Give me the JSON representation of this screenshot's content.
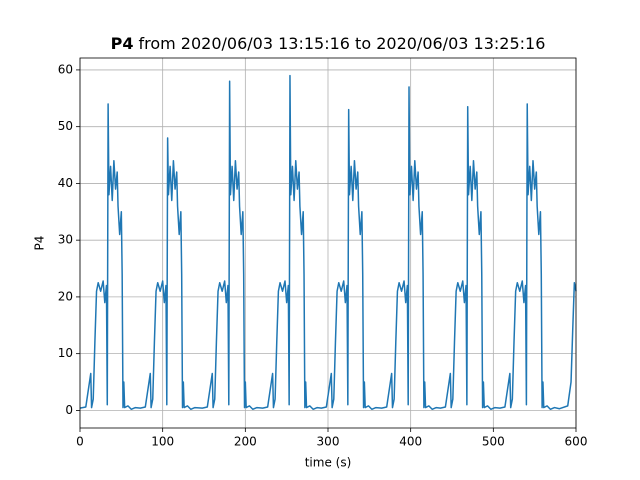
{
  "chart_data": {
    "type": "line",
    "title": {
      "bold": "P4",
      "text": "from 2020/06/03 13:15:16 to 2020/06/03 13:25:16"
    },
    "xlabel": "time (s)",
    "ylabel": "P4",
    "xlim": [
      0,
      600
    ],
    "ylim": [
      -3.1,
      62.1
    ],
    "xticks": [
      0,
      100,
      200,
      300,
      400,
      500,
      600
    ],
    "yticks": [
      0,
      10,
      20,
      30,
      40,
      50,
      60
    ],
    "grid": true,
    "color": "#1f77b4",
    "x": [
      0,
      7,
      13,
      14,
      16,
      18,
      20,
      22,
      25,
      28,
      30,
      32,
      33,
      34,
      35,
      37,
      39,
      41,
      43,
      45,
      46,
      48,
      50,
      51,
      52,
      53,
      54,
      58,
      62,
      67,
      73,
      79,
      85,
      86,
      88,
      90,
      92,
      94,
      97,
      100,
      102,
      104,
      105,
      106,
      107,
      109,
      111,
      113,
      115,
      117,
      118,
      120,
      122,
      123,
      124,
      125,
      126,
      130,
      134,
      139,
      148,
      154,
      160,
      161,
      163,
      165,
      167,
      169,
      172,
      175,
      177,
      179,
      180,
      181,
      182,
      184,
      186,
      188,
      190,
      192,
      193,
      195,
      197,
      198,
      199,
      200,
      201,
      205,
      209,
      214,
      221,
      227,
      233,
      234,
      236,
      238,
      240,
      242,
      245,
      248,
      250,
      252,
      253,
      254,
      255,
      257,
      259,
      261,
      263,
      265,
      266,
      268,
      270,
      271,
      272,
      273,
      274,
      278,
      282,
      287,
      292,
      298,
      304,
      305,
      307,
      309,
      311,
      313,
      316,
      319,
      321,
      323,
      324,
      325,
      326,
      328,
      330,
      332,
      334,
      336,
      337,
      339,
      341,
      342,
      343,
      344,
      345,
      349,
      353,
      358,
      365,
      371,
      377,
      378,
      380,
      382,
      384,
      386,
      389,
      392,
      394,
      396,
      397,
      398,
      399,
      401,
      403,
      405,
      407,
      409,
      410,
      412,
      414,
      415,
      416,
      417,
      418,
      422,
      426,
      431,
      436,
      442,
      448,
      449,
      451,
      453,
      455,
      457,
      460,
      463,
      465,
      467,
      468,
      469,
      470,
      472,
      474,
      476,
      478,
      480,
      481,
      483,
      485,
      486,
      487,
      488,
      489,
      493,
      497,
      502,
      508,
      514,
      520,
      521,
      523,
      525,
      527,
      529,
      532,
      535,
      537,
      539,
      540,
      541,
      542,
      544,
      546,
      548,
      550,
      552,
      553,
      555,
      557,
      558,
      559,
      560,
      561,
      565,
      569,
      574,
      580,
      590,
      594,
      596,
      598,
      600
    ],
    "y": [
      0.4,
      0.6,
      6.5,
      0.5,
      2,
      12,
      21,
      22.5,
      21,
      22.8,
      19,
      22,
      1,
      54,
      38,
      43,
      37,
      44,
      39,
      42,
      36,
      31,
      35,
      24,
      0.5,
      5,
      0.5,
      0.8,
      0.2,
      0.5,
      0.4,
      0.6,
      6.5,
      0.5,
      2,
      12,
      21,
      22.5,
      21,
      22.8,
      19,
      22,
      1,
      48,
      38,
      43,
      37,
      44,
      39,
      42,
      36,
      31,
      35,
      24,
      0.5,
      5,
      0.5,
      0.8,
      0.2,
      0.5,
      0.4,
      0.6,
      6.5,
      0.5,
      2,
      12,
      21,
      22.5,
      21,
      22.8,
      19,
      22,
      1,
      58,
      38,
      43,
      37,
      44,
      39,
      42,
      36,
      31,
      35,
      24,
      0.5,
      5,
      0.5,
      0.8,
      0.2,
      0.5,
      0.4,
      0.6,
      6.5,
      0.5,
      2,
      12,
      21,
      22.5,
      21,
      22.8,
      19,
      22,
      1,
      59,
      38,
      43,
      37,
      44,
      39,
      42,
      36,
      31,
      35,
      24,
      0.5,
      5,
      0.5,
      0.8,
      0.2,
      0.5,
      0.4,
      0.6,
      6.5,
      0.5,
      2,
      12,
      21,
      22.5,
      21,
      22.8,
      19,
      22,
      1,
      53,
      38,
      43,
      37,
      44,
      39,
      42,
      36,
      31,
      35,
      24,
      0.5,
      5,
      0.5,
      0.8,
      0.2,
      0.5,
      0.4,
      0.6,
      6.5,
      0.5,
      2,
      12,
      21,
      22.5,
      21,
      22.8,
      19,
      22,
      1,
      57,
      38,
      43,
      37,
      44,
      39,
      42,
      36,
      31,
      35,
      24,
      0.5,
      5,
      0.5,
      0.8,
      0.2,
      0.5,
      0.4,
      0.6,
      6.5,
      0.5,
      2,
      12,
      21,
      22.5,
      21,
      22.8,
      19,
      22,
      1,
      53.5,
      38,
      43,
      37,
      44,
      39,
      42,
      36,
      31,
      35,
      24,
      0.5,
      5,
      0.5,
      0.8,
      0.2,
      0.5,
      0.4,
      0.6,
      6.5,
      0.5,
      2,
      12,
      21,
      22.5,
      21,
      22.8,
      19,
      22,
      1,
      54,
      38,
      43,
      37,
      44,
      39,
      42,
      36,
      31,
      35,
      24,
      0.5,
      5,
      0.5,
      0.8,
      0.2,
      0.5,
      0.3,
      0.8,
      5,
      14,
      22.5,
      21
    ]
  }
}
